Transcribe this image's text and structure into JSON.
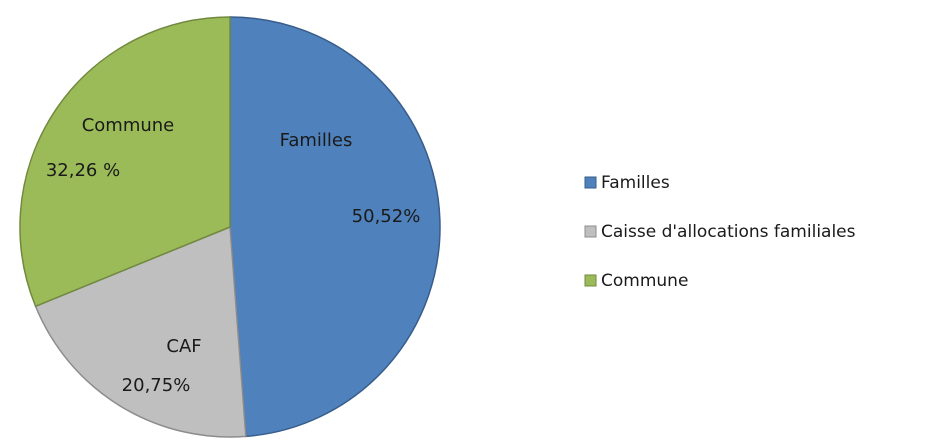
{
  "chart_data": {
    "type": "pie",
    "title": "",
    "slices": [
      {
        "label": "Familles",
        "legend": "Familles",
        "percent_text": "50,52%",
        "value": 50.52,
        "color": "#4f81bd"
      },
      {
        "label": "CAF",
        "legend": "Caisse d'allocations familiales",
        "percent_text": "20,75%",
        "value": 20.75,
        "color": "#bfbfbf"
      },
      {
        "label": "Commune",
        "legend": "Commune",
        "percent_text": "32,26 %",
        "value": 32.26,
        "color": "#9bbb59"
      }
    ],
    "legend_position": "right"
  }
}
